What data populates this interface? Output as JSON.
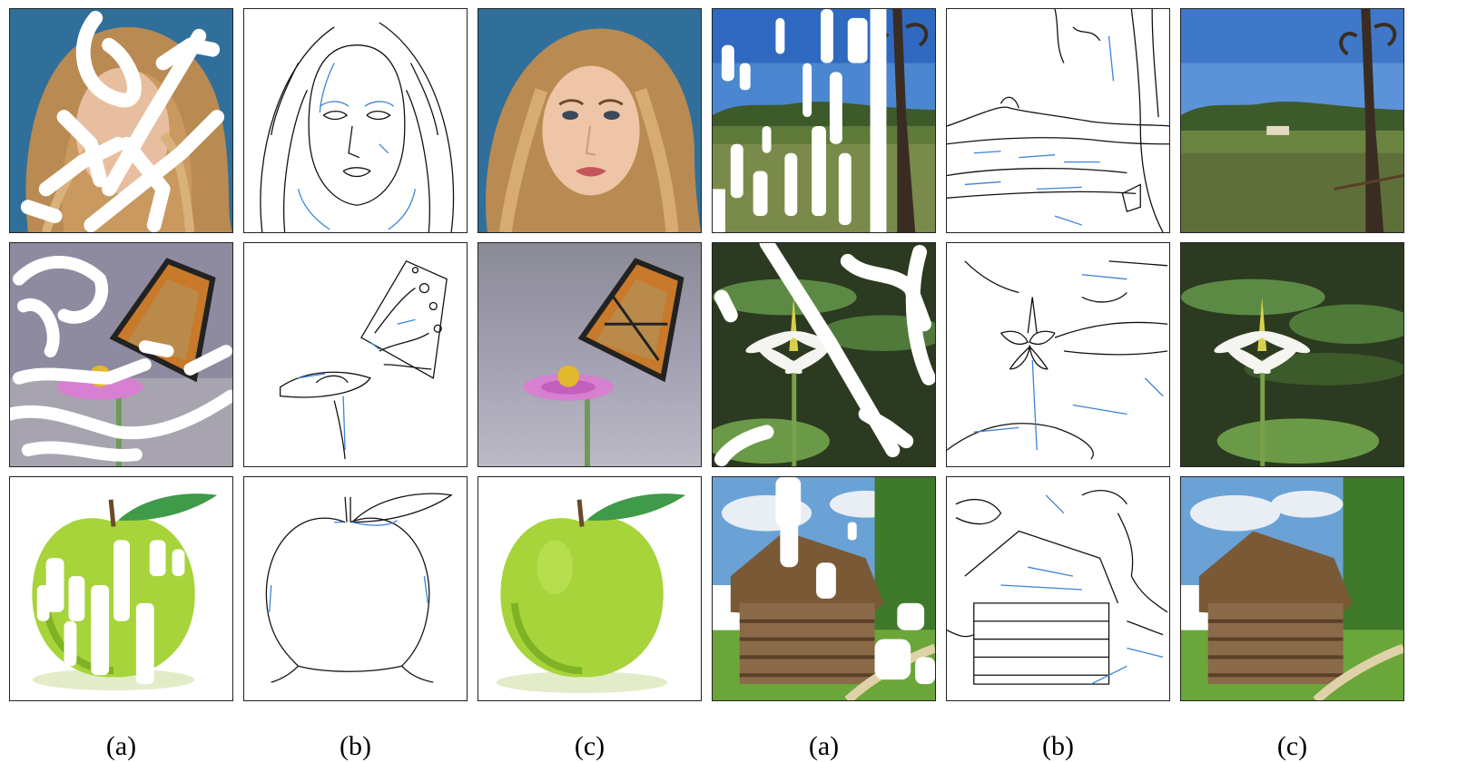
{
  "figure": {
    "captions": [
      "(a)",
      "(b)",
      "(c)",
      "(a)",
      "(b)",
      "(c)"
    ],
    "rows": [
      {
        "left": "face",
        "right": "field"
      },
      {
        "left": "butterfly",
        "right": "lily"
      },
      {
        "left": "apple",
        "right": "hut"
      }
    ],
    "colors": {
      "mask": "#ffffff",
      "edge_black": "#111111",
      "edge_blue": "#3b83d8"
    }
  }
}
